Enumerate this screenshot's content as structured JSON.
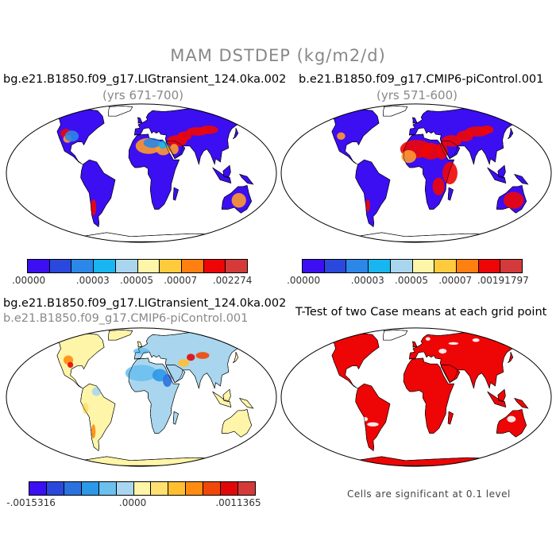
{
  "figure": {
    "title": "MAM DSTDEP (kg/m2/d)"
  },
  "panels": {
    "top_left": {
      "case": "bg.e21.B1850.f09_g17.LIGtransient_124.0ka.002",
      "years": "(yrs 671-700)",
      "field": "case-mean"
    },
    "top_right": {
      "case": "b.e21.B1850.f09_g17.CMIP6-piControl.001",
      "years": "(yrs 571-600)",
      "field": "control-mean"
    },
    "bottom_left": {
      "case_a": "bg.e21.B1850.f09_g17.LIGtransient_124.0ka.002",
      "case_b": "b.e21.B1850.f09_g17.CMIP6-piControl.001",
      "field": "difference"
    },
    "bottom_right": {
      "title": "T-Test of two Case means at each grid point",
      "note": "Cells are significant at 0.1 level",
      "field": "significance"
    }
  },
  "colorbars": {
    "top_left": {
      "colors": [
        "#3c0ef2",
        "#2a49dc",
        "#2b87e8",
        "#17b6f0",
        "#a9d6ee",
        "#fff5a8",
        "#ffcb3c",
        "#ff7f10",
        "#ee0505",
        "#d43a3a"
      ],
      "labels": [
        ".00000",
        ".00003",
        ".00005",
        ".00007",
        ".002274"
      ],
      "label_slots": [
        0,
        3,
        5,
        7,
        10
      ]
    },
    "top_right": {
      "colors": [
        "#3c0ef2",
        "#2a49dc",
        "#2b87e8",
        "#17b6f0",
        "#a9d6ee",
        "#fff5a8",
        "#ffcb3c",
        "#ff7f10",
        "#ee0505",
        "#d43a3a"
      ],
      "labels": [
        ".00000",
        ".00003",
        ".00005",
        ".00007",
        ".00191797"
      ],
      "label_slots": [
        0,
        3,
        5,
        7,
        10
      ]
    },
    "bottom_left": {
      "colors": [
        "#3c0ef2",
        "#2a49dc",
        "#2b72e0",
        "#2b98e8",
        "#6cc0ee",
        "#a9d6ee",
        "#fff5a8",
        "#ffe070",
        "#ffbf30",
        "#ff8c10",
        "#f04808",
        "#e00808",
        "#d43a3a"
      ],
      "labels": [
        "-.0015316",
        ".0000",
        ".0011365"
      ],
      "label_slots": [
        0,
        6,
        13
      ]
    }
  },
  "map_colors": {
    "ocean": "#ffffff",
    "coast": "#000000",
    "low": "#3c0ef2",
    "mid": "#2b87e8",
    "high": "#ee0505",
    "diff_pos": "#fff5a8",
    "diff_neg": "#a9d6ee",
    "significant": "#ee0505"
  }
}
